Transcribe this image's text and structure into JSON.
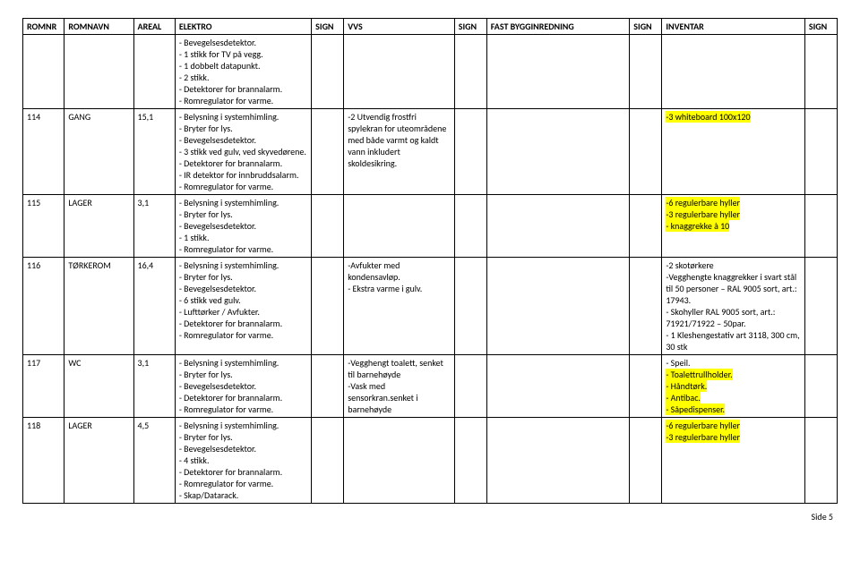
{
  "headers": {
    "romnr": "ROMNR",
    "romnavn": "ROMNAVN",
    "areal": "AREAL",
    "elektro": "ELEKTRO",
    "sign1": "SIGN",
    "vvs": "VVS",
    "sign2": "SIGN",
    "fast": "FAST BYGGINREDNING",
    "sign3": "SIGN",
    "inventar": "INVENTAR",
    "sign4": "SIGN"
  },
  "rows": [
    {
      "romnr": "",
      "romnavn": "",
      "areal": "",
      "elektro": [
        {
          "t": "- Bevegelsesdetektor."
        },
        {
          "t": "- 1 stikk for TV på vegg."
        },
        {
          "t": "- 1 dobbelt datapunkt."
        },
        {
          "t": "- 2 stikk."
        },
        {
          "t": "- Detektorer for brannalarm."
        },
        {
          "t": "- Romregulator for varme."
        }
      ],
      "vvs": [],
      "fast": [],
      "inventar": []
    },
    {
      "romnr": "114",
      "romnavn": "GANG",
      "areal": "15,1",
      "elektro": [
        {
          "t": "- Belysning i systemhimling."
        },
        {
          "t": "- Bryter for lys."
        },
        {
          "t": "- Bevegelsesdetektor."
        },
        {
          "t": "- 3 stikk ved gulv, ved skyvedørene."
        },
        {
          "t": "- Detektorer for brannalarm."
        },
        {
          "t": "- IR detektor for innbruddsalarm."
        },
        {
          "t": "- Romregulator for varme."
        }
      ],
      "vvs": [
        {
          "t": "-2 Utvendig frostfri spylekran for uteområdene med både varmt og kaldt vann inkludert skoldesikring."
        }
      ],
      "fast": [],
      "inventar": [
        {
          "t": "-3 whiteboard 100x120",
          "hl": true
        }
      ]
    },
    {
      "romnr": "115",
      "romnavn": "LAGER",
      "areal": "3,1",
      "elektro": [
        {
          "t": "- Belysning i systemhimling."
        },
        {
          "t": "- Bryter for lys."
        },
        {
          "t": "- Bevegelsesdetektor."
        },
        {
          "t": "- 1 stikk."
        },
        {
          "t": "- Romregulator for varme."
        }
      ],
      "vvs": [],
      "fast": [],
      "inventar": [
        {
          "t": "-6 regulerbare hyller",
          "hl": true
        },
        {
          "t": "-3 regulerbare hyller",
          "hl": true
        },
        {
          "t": "- knaggrekke à 10",
          "hl": true
        }
      ]
    },
    {
      "romnr": "116",
      "romnavn": "TØRKEROM",
      "areal": "16,4",
      "elektro": [
        {
          "t": "- Belysning i systemhimling."
        },
        {
          "t": "- Bryter for lys."
        },
        {
          "t": "- Bevegelsesdetektor."
        },
        {
          "t": "- 6 stikk ved gulv."
        },
        {
          "t": "- Lufttørker / Avfukter."
        },
        {
          "t": "- Detektorer for brannalarm."
        },
        {
          "t": "- Romregulator for varme."
        }
      ],
      "vvs": [
        {
          "t": "-Avfukter med kondensavløp."
        },
        {
          "t": "- Ekstra varme i gulv."
        }
      ],
      "fast": [],
      "inventar": [
        {
          "t": "-2 skotørkere"
        },
        {
          "t": "-Vegghengte knaggrekker i svart stål til 50 personer – RAL 9005 sort, art.: 17943."
        },
        {
          "t": "- Skohyller RAL 9005 sort, art.: 71921/71922 – 50par."
        },
        {
          "t": "- 1 Kleshengestativ art 3118, 300 cm, 30 stk"
        }
      ]
    },
    {
      "romnr": "117",
      "romnavn": "WC",
      "areal": "3,1",
      "elektro": [
        {
          "t": "- Belysning i systemhimling."
        },
        {
          "t": "- Bryter for lys."
        },
        {
          "t": "- Bevegelsesdetektor."
        },
        {
          "t": "- Detektorer for brannalarm."
        },
        {
          "t": "- Romregulator for varme."
        }
      ],
      "vvs": [
        {
          "t": "-Vegghengt toalett, senket til barnehøyde"
        },
        {
          "t": "-Vask med sensorkran.senket i barnehøyde"
        }
      ],
      "fast": [],
      "inventar": [
        {
          "t": "- Speil."
        },
        {
          "t": "- Toalettrullholder.",
          "hl": true
        },
        {
          "t": "- Håndtørk.",
          "hl": true
        },
        {
          "t": "- Antibac.",
          "hl": true
        },
        {
          "t": "- Såpedispenser.",
          "hl": true
        }
      ]
    },
    {
      "romnr": "118",
      "romnavn": "LAGER",
      "areal": "4,5",
      "elektro": [
        {
          "t": "- Belysning i systemhimling."
        },
        {
          "t": "- Bryter for lys."
        },
        {
          "t": "- Bevegelsesdetektor."
        },
        {
          "t": "- 4 stikk."
        },
        {
          "t": "- Detektorer for brannalarm."
        },
        {
          "t": "- Romregulator for varme."
        },
        {
          "t": "- Skap/Datarack."
        }
      ],
      "vvs": [],
      "fast": [],
      "inventar": [
        {
          "t": "-6 regulerbare hyller",
          "hl": true
        },
        {
          "t": "-3 regulerbare hyller",
          "hl": true
        }
      ]
    }
  ],
  "footer": "Side 5"
}
